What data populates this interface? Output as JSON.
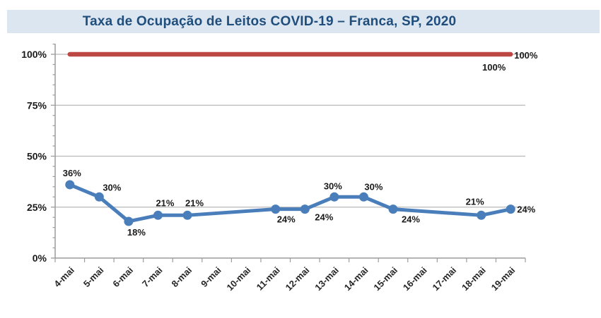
{
  "chart_data": {
    "type": "line",
    "title": "Taxa de Ocupação de Leitos COVID-19 – Franca, SP, 2020",
    "categories": [
      "4-mai",
      "5-mai",
      "6-mai",
      "7-mai",
      "8-mai",
      "9-mai",
      "10-mai",
      "11-mai",
      "12-mai",
      "13-mai",
      "14-mai",
      "15-mai",
      "16-mai",
      "17-mai",
      "18-mai",
      "19-mai"
    ],
    "y_axis": {
      "tick_labels": [
        "0%",
        "25%",
        "50%",
        "75%",
        "100%"
      ],
      "tick_values": [
        0,
        25,
        50,
        75,
        100
      ],
      "min": 0,
      "max": 105,
      "minor_step": 5,
      "grid": true
    },
    "legend": "none",
    "series": [
      {
        "id": "taxa-ocupacao-leitos",
        "color": "#4a7ebb",
        "marker": "circle",
        "line_width": 5,
        "values": [
          36,
          30,
          18,
          21,
          21,
          null,
          null,
          24,
          24,
          30,
          30,
          24,
          null,
          null,
          21,
          24
        ],
        "labels": [
          "36%",
          "30%",
          "18%",
          "21%",
          "21%",
          null,
          null,
          "24%",
          "24%",
          "30%",
          "30%",
          "24%",
          null,
          null,
          "21%",
          "24%"
        ],
        "label_offsets": [
          [
            3,
            -12,
            "middle"
          ],
          [
            18,
            -9,
            "middle"
          ],
          [
            11,
            20,
            "middle"
          ],
          [
            10,
            -13,
            "middle"
          ],
          [
            10,
            -13,
            "middle"
          ],
          null,
          null,
          [
            15,
            19,
            "middle"
          ],
          [
            27,
            16,
            "middle"
          ],
          [
            -2,
            -11,
            "middle"
          ],
          [
            14,
            -10,
            "middle"
          ],
          [
            25,
            19,
            "middle"
          ],
          null,
          null,
          [
            -9,
            -15,
            "middle"
          ],
          [
            9,
            5,
            "start"
          ]
        ]
      },
      {
        "id": "referencia-100pct",
        "color": "#bd4743",
        "marker": "none",
        "line_width": 6.5,
        "values": [
          100,
          100,
          100,
          100,
          100,
          100,
          100,
          100,
          100,
          100,
          100,
          100,
          100,
          100,
          100,
          100
        ],
        "labels": [
          null,
          null,
          null,
          null,
          null,
          null,
          null,
          null,
          null,
          null,
          null,
          null,
          null,
          null,
          "100%",
          "100%"
        ],
        "label_offsets": [
          null,
          null,
          null,
          null,
          null,
          null,
          null,
          null,
          null,
          null,
          null,
          null,
          null,
          null,
          [
            18,
            23,
            "middle"
          ],
          [
            5,
            6,
            "start"
          ]
        ]
      }
    ],
    "colors": {
      "grid": "#b8b8b8",
      "axis": "#9c9c9c",
      "banner_bg": "#dce6f1",
      "title_text": "#1f4e7d",
      "label_text": "#1a1a1a"
    }
  }
}
